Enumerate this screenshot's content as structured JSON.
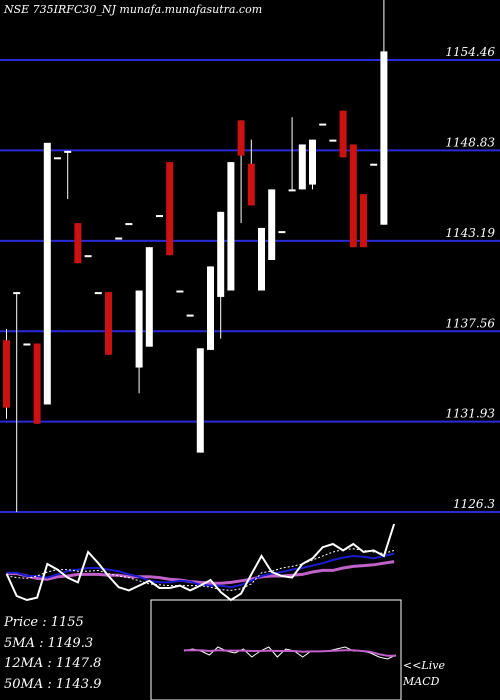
{
  "header": {
    "title": "NSE 735IRFC30_NJ munafa.munafasutra.com"
  },
  "stats": {
    "price": "Price : 1155",
    "ma5": "5MA : 1149.3",
    "ma12": "12MA : 1147.8",
    "ma50": "50MA : 1143.9"
  },
  "macd_label": [
    "<<Live",
    "MACD"
  ],
  "colors": {
    "background": "#000000",
    "gridline": "#2a2ad8",
    "bull": "#ffffff",
    "bear": "#cc1111",
    "ma_fast": "#1c1ccf",
    "ma_slow": "#c060c8",
    "text": "#ffffff"
  },
  "chart_data": [
    {
      "type": "candlestick",
      "title": "NSE 735IRFC30_NJ munafa.munafasutra.com",
      "y_ticks": [
        1154.46,
        1148.83,
        1143.19,
        1137.56,
        1131.93,
        1126.3
      ],
      "ylim": [
        1126.3,
        1158.2
      ],
      "grid": true,
      "candles": [
        {
          "o": 1137.0,
          "h": 1137.7,
          "l": 1132.1,
          "c": 1132.8
        },
        {
          "o": 1140.0,
          "h": 1140.0,
          "l": 1126.3,
          "c": 1140.0
        },
        {
          "o": 1136.8,
          "h": 1136.8,
          "l": 1136.8,
          "c": 1136.8
        },
        {
          "o": 1136.8,
          "h": 1136.8,
          "l": 1131.8,
          "c": 1131.8
        },
        {
          "o": 1133.0,
          "h": 1149.3,
          "l": 1133.0,
          "c": 1149.3
        },
        {
          "o": 1148.4,
          "h": 1148.4,
          "l": 1148.4,
          "c": 1148.4
        },
        {
          "o": 1148.8,
          "h": 1148.8,
          "l": 1145.8,
          "c": 1148.8
        },
        {
          "o": 1144.3,
          "h": 1144.3,
          "l": 1141.8,
          "c": 1141.8
        },
        {
          "o": 1142.3,
          "h": 1142.3,
          "l": 1142.3,
          "c": 1142.3
        },
        {
          "o": 1140.0,
          "h": 1140.0,
          "l": 1140.0,
          "c": 1140.0
        },
        {
          "o": 1140.0,
          "h": 1140.0,
          "l": 1136.1,
          "c": 1136.1
        },
        {
          "o": 1143.4,
          "h": 1143.4,
          "l": 1143.4,
          "c": 1143.4
        },
        {
          "o": 1144.3,
          "h": 1144.3,
          "l": 1144.3,
          "c": 1144.3
        },
        {
          "o": 1135.3,
          "h": 1140.1,
          "l": 1133.7,
          "c": 1140.1
        },
        {
          "o": 1136.6,
          "h": 1142.8,
          "l": 1136.6,
          "c": 1142.8
        },
        {
          "o": 1144.8,
          "h": 1144.8,
          "l": 1144.8,
          "c": 1144.8
        },
        {
          "o": 1148.1,
          "h": 1148.1,
          "l": 1142.3,
          "c": 1142.3
        },
        {
          "o": 1140.1,
          "h": 1140.1,
          "l": 1140.1,
          "c": 1140.1
        },
        {
          "o": 1138.6,
          "h": 1138.6,
          "l": 1138.6,
          "c": 1138.6
        },
        {
          "o": 1130.0,
          "h": 1136.5,
          "l": 1130.0,
          "c": 1136.5
        },
        {
          "o": 1136.4,
          "h": 1141.6,
          "l": 1136.4,
          "c": 1141.6
        },
        {
          "o": 1139.7,
          "h": 1145.0,
          "l": 1137.1,
          "c": 1145.0
        },
        {
          "o": 1140.1,
          "h": 1148.1,
          "l": 1140.1,
          "c": 1148.1
        },
        {
          "o": 1150.7,
          "h": 1150.7,
          "l": 1144.3,
          "c": 1148.5
        },
        {
          "o": 1148.0,
          "h": 1149.5,
          "l": 1145.4,
          "c": 1145.4
        },
        {
          "o": 1140.1,
          "h": 1144.0,
          "l": 1140.1,
          "c": 1144.0
        },
        {
          "o": 1142.0,
          "h": 1146.4,
          "l": 1142.0,
          "c": 1146.4
        },
        {
          "o": 1143.8,
          "h": 1143.8,
          "l": 1143.8,
          "c": 1143.8
        },
        {
          "o": 1146.4,
          "h": 1150.9,
          "l": 1146.4,
          "c": 1146.4
        },
        {
          "o": 1146.4,
          "h": 1149.2,
          "l": 1146.4,
          "c": 1149.2
        },
        {
          "o": 1146.7,
          "h": 1149.5,
          "l": 1146.4,
          "c": 1149.5
        },
        {
          "o": 1150.5,
          "h": 1150.5,
          "l": 1150.5,
          "c": 1150.5
        },
        {
          "o": 1149.5,
          "h": 1149.5,
          "l": 1149.5,
          "c": 1149.5
        },
        {
          "o": 1151.3,
          "h": 1151.3,
          "l": 1148.4,
          "c": 1148.4
        },
        {
          "o": 1149.2,
          "h": 1149.2,
          "l": 1142.8,
          "c": 1142.8
        },
        {
          "o": 1146.1,
          "h": 1146.1,
          "l": 1142.8,
          "c": 1142.8
        },
        {
          "o": 1148.0,
          "h": 1148.0,
          "l": 1148.0,
          "c": 1148.0
        },
        {
          "o": 1144.2,
          "h": 1158.2,
          "l": 1144.2,
          "c": 1155.0
        }
      ]
    },
    {
      "type": "line",
      "name": "momentum-and-moving-average-panel",
      "ylim": [
        0,
        100
      ],
      "series": [
        {
          "name": "white",
          "values": [
            33,
            5,
            0,
            3,
            45,
            38,
            28,
            22,
            60,
            46,
            30,
            16,
            12,
            18,
            24,
            15,
            15,
            18,
            12,
            18,
            25,
            10,
            0,
            8,
            32,
            55,
            35,
            30,
            28,
            45,
            52,
            66,
            70,
            62,
            70,
            60,
            62,
            55,
            95
          ]
        },
        {
          "name": "dotted",
          "values": [
            30,
            28,
            27,
            30,
            35,
            38,
            38,
            36,
            36,
            37,
            33,
            30,
            28,
            24,
            20,
            19,
            18,
            18,
            18,
            18,
            16,
            13,
            12,
            14,
            20,
            34,
            36,
            40,
            42,
            45,
            50,
            55,
            60,
            63,
            64,
            62,
            60,
            58,
            62
          ]
        },
        {
          "name": "blue",
          "values": [
            34,
            34,
            30,
            30,
            28,
            32,
            36,
            38,
            40,
            40,
            38,
            36,
            32,
            29,
            24,
            22,
            22,
            24,
            23,
            19,
            18,
            18,
            16,
            19,
            24,
            30,
            33,
            35,
            38,
            40,
            43,
            46,
            50,
            53,
            55,
            54,
            52,
            55,
            58
          ]
        },
        {
          "name": "magenta",
          "values": [
            33,
            33,
            30,
            27,
            26,
            29,
            30,
            32,
            32,
            32,
            31,
            31,
            29,
            29,
            29,
            28,
            26,
            25,
            23,
            22,
            21,
            21,
            22,
            24,
            26,
            29,
            30,
            30,
            31,
            32,
            35,
            37,
            37,
            40,
            42,
            43,
            44,
            46,
            48
          ]
        }
      ]
    },
    {
      "type": "line",
      "name": "macd",
      "ylim": [
        -1,
        1
      ],
      "series": [
        {
          "name": "macd",
          "values": [
            0.0,
            0.05,
            0.0,
            -0.1,
            0.1,
            0.0,
            -0.05,
            0.05,
            -0.15,
            0.0,
            0.1,
            -0.15,
            0.05,
            0.0,
            -0.15,
            0.0,
            0.0,
            0.0,
            0.05,
            0.1,
            0.0,
            0.0,
            -0.05,
            -0.15,
            -0.2,
            -0.1
          ]
        },
        {
          "name": "signal",
          "values": [
            0.02,
            0.02,
            0.02,
            0.0,
            0.02,
            0.01,
            0.01,
            0.01,
            0.0,
            0.0,
            0.01,
            0.0,
            0.0,
            0.0,
            -0.02,
            -0.01,
            -0.01,
            0.0,
            0.01,
            0.02,
            0.02,
            0.0,
            -0.02,
            -0.08,
            -0.12,
            -0.12
          ]
        }
      ]
    }
  ]
}
